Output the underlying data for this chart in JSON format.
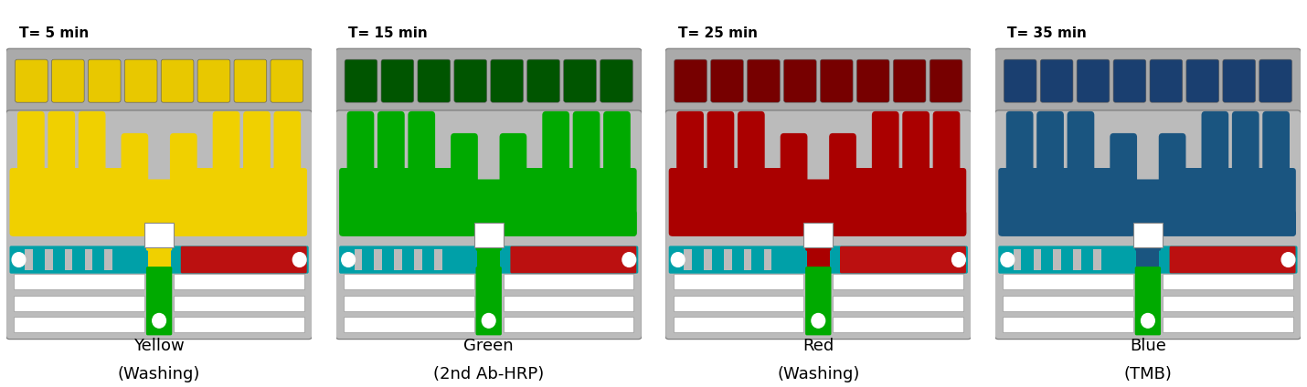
{
  "panels": [
    {
      "time_label": "T= 5 min",
      "color_name": "Yellow",
      "subtitle": "(Washing)",
      "main_color": "#F0D000",
      "well_color": "#E8C800",
      "stem_color": "#00AA00",
      "cyan_color": "#00A0A8",
      "red_color": "#BB1010"
    },
    {
      "time_label": "T= 15 min",
      "color_name": "Green",
      "subtitle": "(2nd Ab-HRP)",
      "main_color": "#00AA00",
      "well_color": "#005500",
      "stem_color": "#00AA00",
      "cyan_color": "#00A0A8",
      "red_color": "#BB1010"
    },
    {
      "time_label": "T= 25 min",
      "color_name": "Red",
      "subtitle": "(Washing)",
      "main_color": "#AA0000",
      "well_color": "#770000",
      "stem_color": "#00AA00",
      "cyan_color": "#00A0A8",
      "red_color": "#BB1010"
    },
    {
      "time_label": "T= 35 min",
      "color_name": "Blue",
      "subtitle": "(TMB)",
      "main_color": "#1A5580",
      "well_color": "#1A3F70",
      "stem_color": "#00AA00",
      "cyan_color": "#00A0A8",
      "red_color": "#BB1010"
    }
  ],
  "bg_color": "#FFFFFF",
  "panel_bg": "#BBBBBB",
  "well_strip_bg": "#AAAAAA",
  "n_wells": 8,
  "time_fontsize": 11,
  "label_fontsize": 13
}
